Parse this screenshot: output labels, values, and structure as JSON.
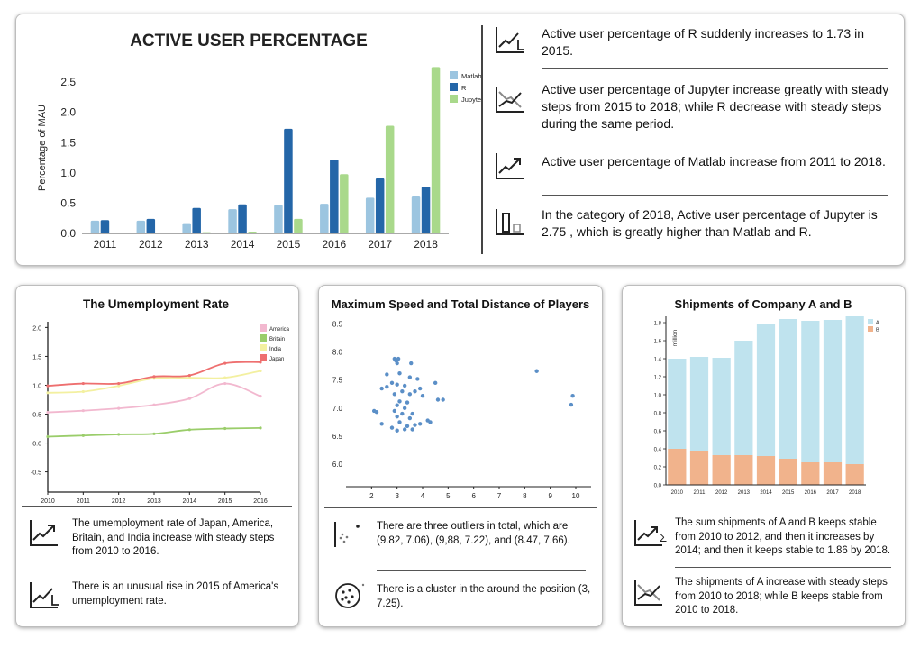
{
  "top": {
    "chart_title": "ACTIVE USER PERCENTAGE",
    "insights": [
      "Active user percentage of R suddenly increases to 1.73 in 2015.",
      "Active user percentage of Jupyter increase greatly with steady steps from 2015 to 2018; while R decrease with steady steps during the same period.",
      "Active user percentage of Matlab increase from 2011 to 2018.",
      "In the category of 2018, Active user percentage of Jupyter is 2.75 , which is greatly higher than Matlab and R."
    ],
    "insight_icons": [
      "sudden-increase-icon",
      "trend-compare-icon",
      "increase-trend-icon",
      "bar-value-icon"
    ]
  },
  "unemployment": {
    "insights": [
      "The umemployment rate of Japan, America, Britain, and India increase with steady steps from 2010 to 2016.",
      "There is an unusual rise in 2015 of America's umemployment rate."
    ],
    "insight_icons": [
      "increase-trend-icon",
      "sudden-increase-icon"
    ]
  },
  "players": {
    "insights": [
      "There are three outliers in total, which are (9.82, 7.06), (9,88, 7.22), and (8.47, 7.66).",
      "There is a cluster in the around the position (3, 7.25)."
    ],
    "insight_icons": [
      "outlier-icon",
      "cluster-icon"
    ]
  },
  "shipments": {
    "insights": [
      "The sum shipments of A and B keeps stable from 2010 to 2012, and then it increases by 2014; and then it keeps stable to 1.86 by 2018.",
      "The shipments of A increase with steady steps from 2010 to 2018; while B keeps stable from 2010 to 2018."
    ],
    "insight_icons": [
      "sum-trend-icon",
      "trend-compare-icon"
    ]
  },
  "chart_data": [
    {
      "type": "bar",
      "title": "ACTIVE USER PERCENTAGE",
      "ylabel": "Percentage of MAU",
      "xlabel": "",
      "categories": [
        "2011",
        "2012",
        "2013",
        "2014",
        "2015",
        "2016",
        "2017",
        "2018"
      ],
      "series": [
        {
          "name": "Matlab",
          "color": "#9cc5e0",
          "values": [
            0.21,
            0.21,
            0.17,
            0.4,
            0.47,
            0.49,
            0.59,
            0.61
          ]
        },
        {
          "name": "R",
          "color": "#2466a8",
          "values": [
            0.22,
            0.24,
            0.42,
            0.48,
            1.73,
            1.22,
            0.91,
            0.77
          ]
        },
        {
          "name": "Jupyter",
          "color": "#a9d98b",
          "values": [
            0,
            0,
            0.02,
            0.03,
            0.24,
            0.98,
            1.78,
            2.75
          ]
        }
      ],
      "yticks": [
        0.0,
        0.5,
        1.0,
        1.5,
        2.0,
        2.5
      ],
      "ylim": [
        0,
        2.8
      ],
      "grid": false,
      "legend": "top-right"
    },
    {
      "type": "line",
      "title": "The Umemployment Rate",
      "x": [
        "2010",
        "2011",
        "2012",
        "2013",
        "2014",
        "2015",
        "2016"
      ],
      "series": [
        {
          "name": "America",
          "color": "#f2b8cf",
          "values": [
            0.53,
            0.56,
            0.6,
            0.66,
            0.77,
            1.03,
            0.81
          ]
        },
        {
          "name": "Britain",
          "color": "#9acd6a",
          "values": [
            0.11,
            0.13,
            0.15,
            0.16,
            0.23,
            0.25,
            0.26
          ]
        },
        {
          "name": "India",
          "color": "#f3f0a0",
          "values": [
            0.87,
            0.89,
            0.99,
            1.12,
            1.13,
            1.13,
            1.25
          ]
        },
        {
          "name": "Japan",
          "color": "#ee6f6f",
          "values": [
            0.99,
            1.03,
            1.03,
            1.15,
            1.17,
            1.38,
            1.4
          ]
        }
      ],
      "yticks": [
        -0.5,
        0.0,
        0.5,
        1.0,
        1.5,
        2.0
      ],
      "ylim": [
        -0.85,
        2.1
      ],
      "legend": "top-right"
    },
    {
      "type": "scatter",
      "title": "Maximum Speed and Total Distance of Players",
      "xticks": [
        2,
        3,
        4,
        5,
        6,
        7,
        8,
        9,
        10
      ],
      "yticks": [
        6.0,
        6.5,
        7.0,
        7.5,
        8.0,
        8.5
      ],
      "xlim": [
        1.0,
        10.6
      ],
      "ylim": [
        5.6,
        8.7
      ],
      "color": "#5b8fc7",
      "points": [
        [
          2.9,
          7.88
        ],
        [
          2.95,
          7.85
        ],
        [
          3.0,
          7.8
        ],
        [
          3.05,
          7.88
        ],
        [
          3.55,
          7.8
        ],
        [
          2.6,
          7.6
        ],
        [
          3.1,
          7.62
        ],
        [
          3.5,
          7.55
        ],
        [
          3.8,
          7.52
        ],
        [
          2.8,
          7.45
        ],
        [
          3.0,
          7.42
        ],
        [
          3.3,
          7.4
        ],
        [
          4.5,
          7.45
        ],
        [
          2.4,
          7.35
        ],
        [
          2.6,
          7.38
        ],
        [
          3.2,
          7.3
        ],
        [
          3.7,
          7.3
        ],
        [
          3.9,
          7.35
        ],
        [
          2.9,
          7.25
        ],
        [
          3.5,
          7.25
        ],
        [
          4.0,
          7.22
        ],
        [
          4.6,
          7.15
        ],
        [
          4.8,
          7.15
        ],
        [
          3.1,
          7.12
        ],
        [
          3.4,
          7.1
        ],
        [
          3.0,
          7.05
        ],
        [
          3.3,
          7.0
        ],
        [
          2.1,
          6.95
        ],
        [
          2.2,
          6.93
        ],
        [
          2.9,
          6.95
        ],
        [
          3.2,
          6.9
        ],
        [
          3.6,
          6.9
        ],
        [
          3.0,
          6.85
        ],
        [
          3.5,
          6.82
        ],
        [
          4.2,
          6.78
        ],
        [
          2.4,
          6.72
        ],
        [
          3.1,
          6.75
        ],
        [
          3.9,
          6.72
        ],
        [
          4.3,
          6.75
        ],
        [
          2.8,
          6.65
        ],
        [
          3.4,
          6.68
        ],
        [
          3.6,
          6.62
        ],
        [
          3.7,
          6.7
        ],
        [
          3.0,
          6.6
        ],
        [
          3.3,
          6.62
        ],
        [
          9.82,
          7.06
        ],
        [
          9.88,
          7.22
        ],
        [
          8.47,
          7.66
        ]
      ]
    },
    {
      "type": "bar",
      "title": "Shipments of Company A and B",
      "ylabel": "million",
      "categories": [
        "2010",
        "2011",
        "2012",
        "2013",
        "2014",
        "2015",
        "2016",
        "2017",
        "2018"
      ],
      "series": [
        {
          "name": "A",
          "color": "#bfe3ee",
          "values": [
            1.0,
            1.04,
            1.08,
            1.27,
            1.46,
            1.55,
            1.57,
            1.58,
            1.64
          ]
        },
        {
          "name": "B",
          "color": "#f1b38c",
          "values": [
            0.4,
            0.38,
            0.33,
            0.33,
            0.32,
            0.29,
            0.25,
            0.25,
            0.23
          ]
        }
      ],
      "stacked": true,
      "yticks": [
        0.0,
        0.2,
        0.4,
        0.6,
        0.8,
        1.0,
        1.2,
        1.4,
        1.6,
        1.8
      ],
      "ylim": [
        0,
        1.87
      ],
      "legend": "top-right"
    }
  ]
}
